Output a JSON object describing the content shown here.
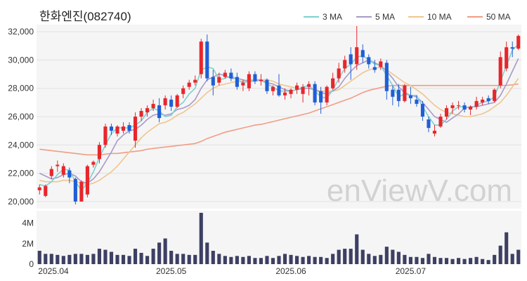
{
  "title": "한화엔진(082740)",
  "watermark": "enViewV.com",
  "colors": {
    "up": "#e8262b",
    "down": "#1f5fd6",
    "ma3": "#7fd0d0",
    "ma5": "#a89ac8",
    "ma10": "#f0c58e",
    "ma50": "#f29c86",
    "volume": "#3d3f63"
  },
  "chart_data": {
    "type": "candlestick",
    "price_axis": {
      "min": 19500,
      "max": 32500,
      "ticks": [
        "20,000",
        "22,000",
        "24,000",
        "26,000",
        "28,000",
        "30,000",
        "32,000"
      ],
      "tick_values": [
        20000,
        22000,
        24000,
        26000,
        28000,
        30000,
        32000
      ]
    },
    "volume_axis": {
      "min": 0,
      "max": 5200000,
      "ticks": [
        "0",
        "2M",
        "4M"
      ],
      "tick_values": [
        0,
        2000000,
        4000000
      ]
    },
    "x_labels": [
      {
        "label": "2025.04",
        "index": 0
      },
      {
        "label": "2025.05",
        "index": 22
      },
      {
        "label": "2025.06",
        "index": 42
      },
      {
        "label": "2025.07",
        "index": 62
      }
    ],
    "legend": [
      {
        "name": "3 MA",
        "color": "#7fd0d0"
      },
      {
        "name": "5 MA",
        "color": "#a89ac8"
      },
      {
        "name": "10 MA",
        "color": "#f0c58e"
      },
      {
        "name": "50 MA",
        "color": "#f29c86"
      }
    ],
    "candles": [
      [
        20800,
        21200,
        20500,
        21000,
        1300000
      ],
      [
        20400,
        21200,
        20300,
        21100,
        1000000
      ],
      [
        21800,
        22500,
        21600,
        22300,
        1000000
      ],
      [
        22500,
        22900,
        22100,
        22600,
        900000
      ],
      [
        21900,
        22700,
        21700,
        22500,
        800000
      ],
      [
        22200,
        22400,
        21300,
        21700,
        900000
      ],
      [
        21600,
        21700,
        19800,
        20000,
        1000000
      ],
      [
        20000,
        21500,
        20000,
        21400,
        1000000
      ],
      [
        20500,
        22600,
        20300,
        22500,
        900000
      ],
      [
        22600,
        22900,
        22400,
        22800,
        1000000
      ],
      [
        23000,
        24200,
        22700,
        24000,
        1500000
      ],
      [
        24000,
        25500,
        23800,
        25300,
        1400000
      ],
      [
        25300,
        25500,
        24700,
        25000,
        1200000
      ],
      [
        24800,
        25400,
        24600,
        25300,
        900000
      ],
      [
        25000,
        25600,
        24800,
        25300,
        900000
      ],
      [
        25400,
        25600,
        24800,
        25000,
        800000
      ],
      [
        24300,
        26300,
        23800,
        26000,
        1500000
      ],
      [
        26000,
        26600,
        25700,
        26400,
        1100000
      ],
      [
        26300,
        26800,
        26000,
        26600,
        800000
      ],
      [
        26600,
        27200,
        26400,
        26900,
        1500000
      ],
      [
        26800,
        27300,
        25600,
        25900,
        2100000
      ],
      [
        26800,
        27500,
        26500,
        27300,
        2500000
      ],
      [
        27200,
        27500,
        26400,
        26700,
        1300000
      ],
      [
        26700,
        27600,
        26600,
        27500,
        1000000
      ],
      [
        27600,
        28200,
        27300,
        28000,
        1000000
      ],
      [
        28100,
        28600,
        27900,
        28400,
        900000
      ],
      [
        28400,
        28900,
        28200,
        28600,
        900000
      ],
      [
        29000,
        31500,
        28700,
        31300,
        5000000
      ],
      [
        31300,
        31800,
        28500,
        28700,
        2100000
      ],
      [
        28800,
        29300,
        27500,
        28200,
        1300000
      ],
      [
        28400,
        29100,
        28200,
        28800,
        1000000
      ],
      [
        28800,
        29300,
        28700,
        29100,
        800000
      ],
      [
        29100,
        29400,
        28500,
        28700,
        700000
      ],
      [
        28800,
        29100,
        27900,
        28100,
        800000
      ],
      [
        28200,
        28600,
        27800,
        28400,
        700000
      ],
      [
        28000,
        29200,
        27800,
        29000,
        800000
      ],
      [
        29000,
        29200,
        28300,
        28500,
        600000
      ],
      [
        28500,
        29000,
        28200,
        28600,
        600000
      ],
      [
        28600,
        28700,
        27600,
        27800,
        800000
      ],
      [
        27800,
        28200,
        27500,
        28100,
        600000
      ],
      [
        28200,
        29000,
        27400,
        27500,
        800000
      ],
      [
        27500,
        28000,
        27200,
        27700,
        1000000
      ],
      [
        27600,
        28000,
        27300,
        27900,
        900000
      ],
      [
        27900,
        28400,
        27600,
        28200,
        800000
      ],
      [
        27600,
        28300,
        27000,
        28100,
        700000
      ],
      [
        28100,
        28500,
        27500,
        28300,
        800000
      ],
      [
        28300,
        28500,
        26800,
        27000,
        700000
      ],
      [
        27800,
        28100,
        26200,
        27000,
        700000
      ],
      [
        27000,
        28200,
        26800,
        28100,
        600000
      ],
      [
        28000,
        29100,
        27900,
        28700,
        1000000
      ],
      [
        28700,
        29800,
        28400,
        29400,
        1400000
      ],
      [
        29400,
        30300,
        29100,
        30000,
        1500000
      ],
      [
        30400,
        30900,
        28600,
        29700,
        1500000
      ],
      [
        29700,
        32400,
        29300,
        30900,
        2900000
      ],
      [
        30700,
        31100,
        29800,
        30200,
        1400000
      ],
      [
        30200,
        30400,
        29400,
        29700,
        1000000
      ],
      [
        29500,
        30000,
        29100,
        29300,
        800000
      ],
      [
        29500,
        30100,
        29300,
        29900,
        900000
      ],
      [
        29800,
        30000,
        27200,
        27800,
        1700000
      ],
      [
        27900,
        28200,
        26800,
        27400,
        1400000
      ],
      [
        27900,
        28300,
        26700,
        27100,
        1200000
      ],
      [
        27100,
        28300,
        27000,
        28200,
        900000
      ],
      [
        27500,
        28100,
        26900,
        27300,
        700000
      ],
      [
        27200,
        27500,
        26700,
        26900,
        700000
      ],
      [
        26900,
        27100,
        25700,
        26000,
        600000
      ],
      [
        25800,
        26000,
        24900,
        25200,
        1000000
      ],
      [
        24800,
        25400,
        24600,
        25000,
        700000
      ],
      [
        25300,
        26200,
        25200,
        26000,
        600000
      ],
      [
        26000,
        26800,
        25800,
        26600,
        600000
      ],
      [
        26600,
        27000,
        26200,
        26800,
        500000
      ],
      [
        26800,
        27100,
        26500,
        26800,
        600000
      ],
      [
        26800,
        27000,
        26300,
        26500,
        500000
      ],
      [
        26500,
        26800,
        26100,
        26700,
        600000
      ],
      [
        26700,
        27400,
        26500,
        27100,
        700000
      ],
      [
        27000,
        27400,
        26800,
        27200,
        500000
      ],
      [
        27300,
        27500,
        26900,
        27100,
        400000
      ],
      [
        27100,
        28000,
        27000,
        27900,
        900000
      ],
      [
        28200,
        30600,
        28000,
        30200,
        1800000
      ],
      [
        29400,
        31300,
        29200,
        30900,
        3100000
      ],
      [
        30900,
        31300,
        30200,
        30800,
        1000000
      ],
      [
        30800,
        31800,
        30700,
        31700,
        1400000
      ]
    ],
    "ma3": [
      21200,
      21100,
      21400,
      21900,
      22300,
      22200,
      21400,
      20800,
      21300,
      22100,
      23100,
      24000,
      24800,
      25200,
      25200,
      25200,
      25400,
      25700,
      26300,
      26600,
      26400,
      26000,
      26100,
      26700,
      27000,
      27600,
      28000,
      29300,
      29500,
      29400,
      28600,
      28700,
      28900,
      28600,
      28400,
      28500,
      28600,
      28600,
      28300,
      28100,
      27800,
      27800,
      27800,
      27900,
      28100,
      28200,
      27800,
      27400,
      27300,
      27900,
      28700,
      29400,
      29700,
      30200,
      30300,
      30000,
      29700,
      29600,
      28900,
      28200,
      27400,
      27600,
      27500,
      27500,
      26700,
      26000,
      25400,
      25400,
      25800,
      26400,
      26700,
      26700,
      26600,
      26800,
      27000,
      27100,
      27400,
      28500,
      29600,
      30700,
      31100
    ],
    "ma5": [
      22000,
      21800,
      21600,
      21700,
      21900,
      22000,
      21800,
      21400,
      21300,
      21600,
      22100,
      22800,
      23500,
      24300,
      24700,
      25000,
      25100,
      25400,
      25800,
      26100,
      26200,
      26100,
      26200,
      26500,
      26600,
      26800,
      27200,
      28000,
      28600,
      28800,
      29000,
      28900,
      28700,
      28700,
      28600,
      28500,
      28500,
      28600,
      28400,
      28300,
      28100,
      27900,
      27800,
      27900,
      28000,
      28000,
      27900,
      27700,
      27600,
      27800,
      28100,
      28700,
      29200,
      29600,
      29800,
      30000,
      29800,
      29600,
      29200,
      28700,
      28100,
      27700,
      27500,
      27400,
      27000,
      26500,
      26000,
      25800,
      25600,
      25900,
      26200,
      26600,
      26700,
      26700,
      26800,
      26900,
      27000,
      27500,
      28300,
      29200,
      30100
    ],
    "ma10": [
      21500,
      21400,
      21400,
      21400,
      21500,
      21500,
      21400,
      21300,
      21200,
      21300,
      21500,
      21800,
      22100,
      22500,
      23000,
      23500,
      24000,
      24500,
      24900,
      25200,
      25500,
      25600,
      25800,
      26100,
      26300,
      26600,
      26900,
      27300,
      27700,
      28000,
      28200,
      28300,
      28400,
      28500,
      28500,
      28600,
      28600,
      28600,
      28600,
      28500,
      28300,
      28200,
      28100,
      28000,
      28000,
      28000,
      27900,
      27800,
      27800,
      27800,
      27900,
      28200,
      28500,
      28800,
      29100,
      29300,
      29400,
      29500,
      29300,
      29000,
      28700,
      28400,
      28200,
      27900,
      27600,
      27200,
      26800,
      26500,
      26300,
      26200,
      26100,
      26000,
      26000,
      26100,
      26200,
      26400,
      26700,
      27000,
      27500,
      28100,
      28700
    ],
    "ma50": [
      23700,
      23650,
      23600,
      23550,
      23500,
      23450,
      23400,
      23350,
      23300,
      23300,
      23300,
      23350,
      23400,
      23400,
      23450,
      23500,
      23550,
      23600,
      23700,
      23750,
      23800,
      23850,
      23900,
      23950,
      24000,
      24050,
      24100,
      24250,
      24450,
      24600,
      24750,
      24900,
      25000,
      25100,
      25200,
      25300,
      25400,
      25450,
      25550,
      25650,
      25750,
      25850,
      25950,
      26050,
      26150,
      26250,
      26400,
      26550,
      26700,
      26850,
      27000,
      27150,
      27300,
      27500,
      27700,
      27850,
      27950,
      28050,
      28150,
      28200,
      28200,
      28200,
      28200,
      28200,
      28200,
      28200,
      28200,
      28200,
      28200,
      28200,
      28200,
      28200,
      28200,
      28200,
      28200,
      28200,
      28200,
      28200,
      28200,
      28250,
      28300
    ]
  }
}
